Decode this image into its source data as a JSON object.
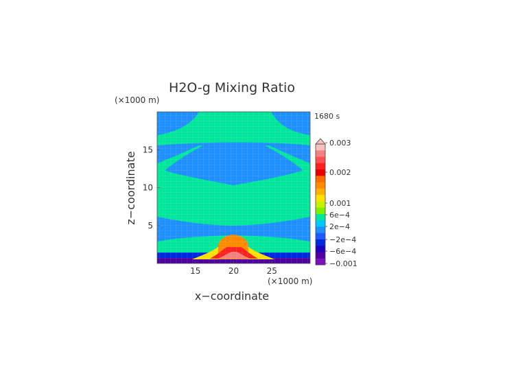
{
  "chart_data": {
    "type": "heatmap",
    "title": "H2O-g Mixing Ratio",
    "time_label": "1680 s",
    "xlabel": "x−coordinate",
    "ylabel": "z−coordinate",
    "x_unit": "(×1000 m)",
    "y_unit": "(×1000 m)",
    "xlim": [
      10,
      30
    ],
    "ylim": [
      0,
      20
    ],
    "x_ticks": [
      15,
      20,
      25
    ],
    "y_ticks": [
      5,
      10,
      15
    ],
    "x_tick_labels": [
      "15",
      "20",
      "25"
    ],
    "y_tick_labels": [
      "5",
      "10",
      "15"
    ],
    "grid": true,
    "colorbar": {
      "labels": [
        "0.003",
        "0.002",
        "0.001",
        "6e−4",
        "2e−4",
        "−2e−4",
        "−6e−4",
        "−0.001"
      ],
      "colors": [
        "#f9c0c0",
        "#f48080",
        "#ff5050",
        "#ff2020",
        "#e60000",
        "#ff6a00",
        "#ff8c00",
        "#ffb000",
        "#ffe000",
        "#c8f000",
        "#7cf000",
        "#00e69a",
        "#00c8ff",
        "#1e90ff",
        "#1e5aff",
        "#0028e0",
        "#2000c0",
        "#5000a0",
        "#7a10c0"
      ]
    },
    "field_levels": {
      "background": "−2e−4",
      "bands": "2e−4",
      "surface_layer": "−6e−4",
      "core_max": "0.003"
    }
  }
}
